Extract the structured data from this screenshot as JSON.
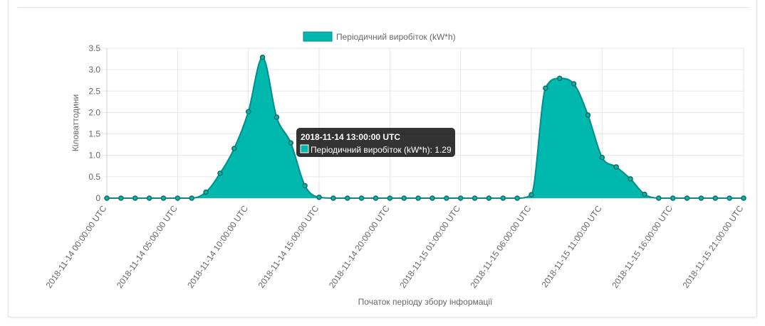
{
  "chart_data": {
    "type": "area",
    "title": "",
    "xlabel": "Початок періоду збору інформації",
    "ylabel": "Кіловаттодини",
    "ylim": [
      0,
      3.5
    ],
    "yticks": [
      "0",
      "0.5",
      "1.0",
      "1.5",
      "2.0",
      "2.5",
      "3.0",
      "3.5"
    ],
    "grid": true,
    "legend_position": "top-center",
    "x": [
      "2018-11-14 00:00:00 UTC",
      "2018-11-14 01:00:00 UTC",
      "2018-11-14 02:00:00 UTC",
      "2018-11-14 03:00:00 UTC",
      "2018-11-14 04:00:00 UTC",
      "2018-11-14 05:00:00 UTC",
      "2018-11-14 06:00:00 UTC",
      "2018-11-14 07:00:00 UTC",
      "2018-11-14 08:00:00 UTC",
      "2018-11-14 09:00:00 UTC",
      "2018-11-14 10:00:00 UTC",
      "2018-11-14 11:00:00 UTC",
      "2018-11-14 12:00:00 UTC",
      "2018-11-14 13:00:00 UTC",
      "2018-11-14 14:00:00 UTC",
      "2018-11-14 15:00:00 UTC",
      "2018-11-14 16:00:00 UTC",
      "2018-11-14 17:00:00 UTC",
      "2018-11-14 18:00:00 UTC",
      "2018-11-14 19:00:00 UTC",
      "2018-11-14 20:00:00 UTC",
      "2018-11-14 21:00:00 UTC",
      "2018-11-14 22:00:00 UTC",
      "2018-11-14 23:00:00 UTC",
      "2018-11-15 00:00:00 UTC",
      "2018-11-15 01:00:00 UTC",
      "2018-11-15 02:00:00 UTC",
      "2018-11-15 03:00:00 UTC",
      "2018-11-15 04:00:00 UTC",
      "2018-11-15 05:00:00 UTC",
      "2018-11-15 06:00:00 UTC",
      "2018-11-15 07:00:00 UTC",
      "2018-11-15 08:00:00 UTC",
      "2018-11-15 09:00:00 UTC",
      "2018-11-15 10:00:00 UTC",
      "2018-11-15 11:00:00 UTC",
      "2018-11-15 12:00:00 UTC",
      "2018-11-15 13:00:00 UTC",
      "2018-11-15 14:00:00 UTC",
      "2018-11-15 15:00:00 UTC",
      "2018-11-15 16:00:00 UTC",
      "2018-11-15 17:00:00 UTC",
      "2018-11-15 18:00:00 UTC",
      "2018-11-15 19:00:00 UTC",
      "2018-11-15 20:00:00 UTC",
      "2018-11-15 21:00:00 UTC"
    ],
    "x_tick_labels": [
      "2018-11-14 00:00:00 UTC",
      "2018-11-14 05:00:00 UTC",
      "2018-11-14 10:00:00 UTC",
      "2018-11-14 15:00:00 UTC",
      "2018-11-14 20:00:00 UTC",
      "2018-11-15 01:00:00 UTC",
      "2018-11-15 06:00:00 UTC",
      "2018-11-15 11:00:00 UTC",
      "2018-11-15 16:00:00 UTC",
      "2018-11-15 21:00:00 UTC"
    ],
    "series": [
      {
        "name": "Періодичний виробіток (kW*h)",
        "color": "#00b8ad",
        "border_color": "#008f88",
        "values": [
          0,
          0,
          0,
          0,
          0,
          0,
          0,
          0.14,
          0.58,
          1.16,
          2.02,
          3.29,
          1.89,
          1.29,
          0.29,
          0.02,
          0,
          0,
          0,
          0,
          0,
          0,
          0,
          0,
          0,
          0,
          0,
          0,
          0,
          0,
          0.08,
          2.57,
          2.8,
          2.67,
          1.94,
          0.95,
          0.73,
          0.45,
          0.09,
          0,
          0,
          0,
          0,
          0,
          0,
          0
        ]
      }
    ],
    "tooltip": {
      "title": "2018-11-14 13:00:00 UTC",
      "label": "Періодичний виробіток (kW*h): 1.29",
      "index": 13
    }
  }
}
